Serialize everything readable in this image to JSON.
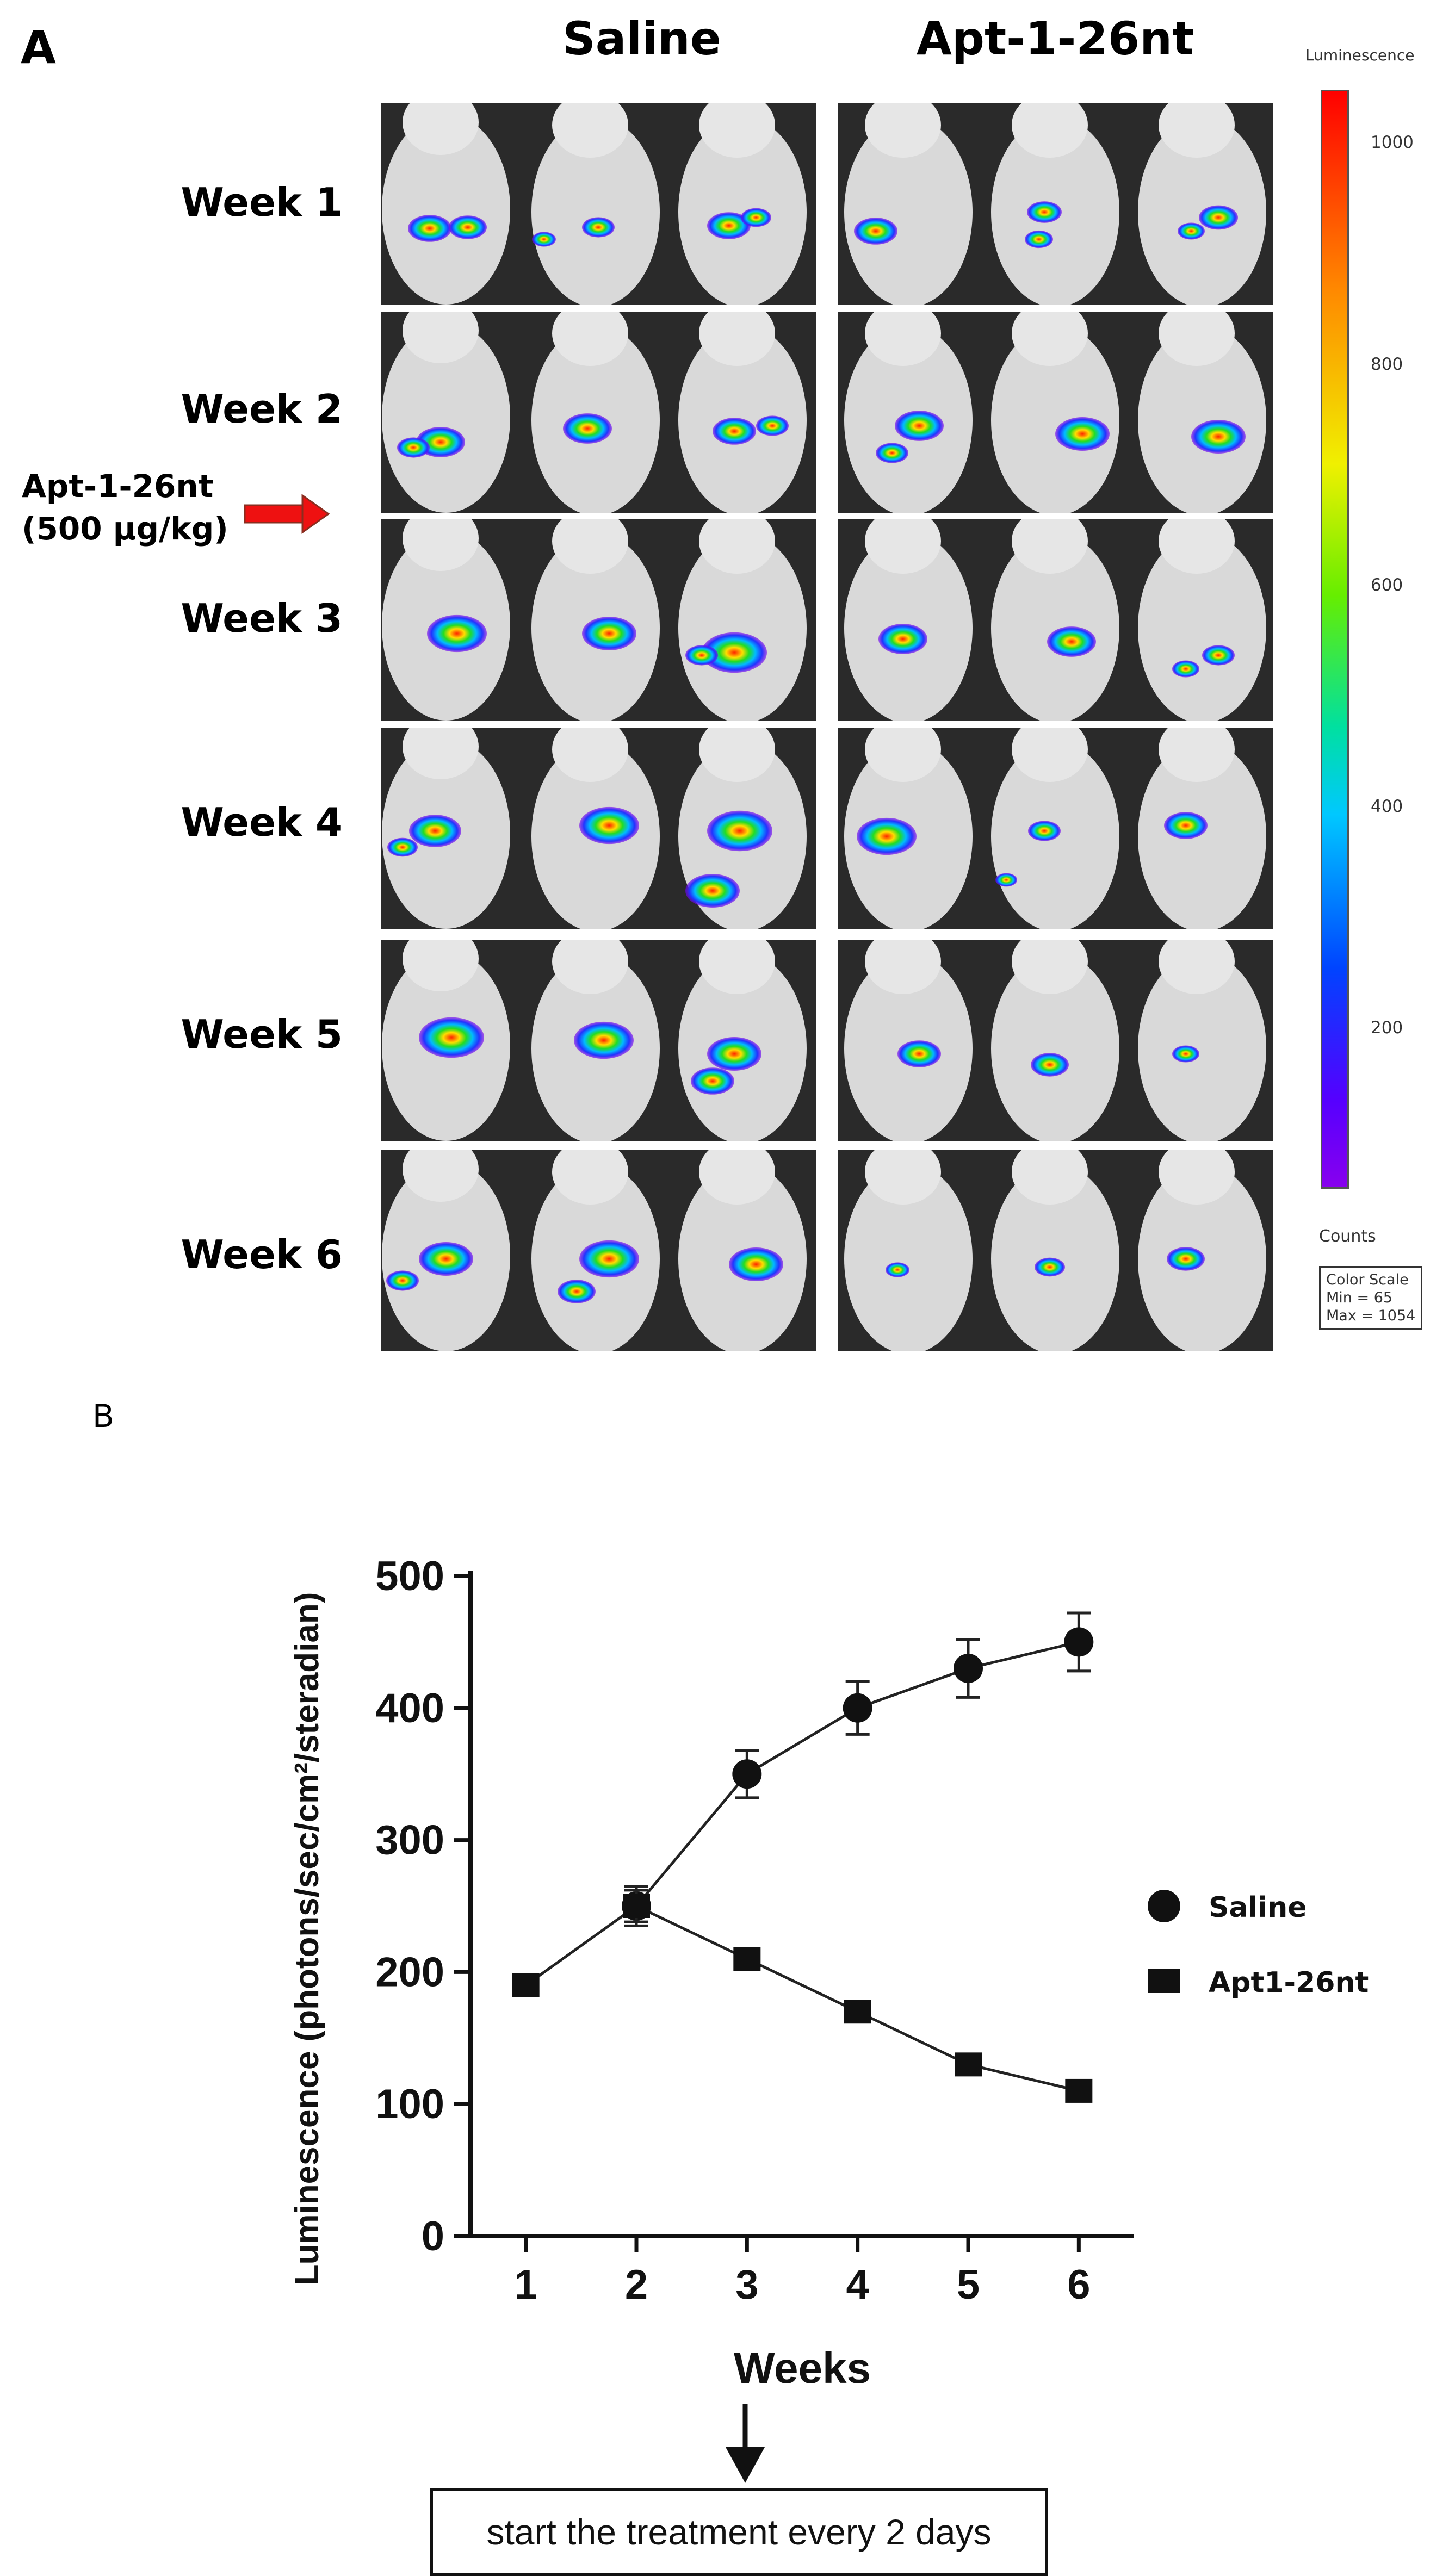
{
  "figure": {
    "panel_a_letter": "A",
    "panel_b_letter": "B",
    "col_saline": "Saline",
    "col_apt": "Apt-1-26nt",
    "weeks": [
      "Week 1",
      "Week 2",
      "Week 3",
      "Week 4",
      "Week 5",
      "Week 6"
    ],
    "treatment_label_line1": "Apt-1-26nt",
    "treatment_label_line2": "(500 μg/kg)",
    "arrow_color": "#ee1111",
    "colorbar": {
      "title": "Luminescence",
      "ticks": [
        "1000",
        "800",
        "600",
        "400",
        "200"
      ],
      "tick_values": [
        1000,
        800,
        600,
        400,
        200
      ],
      "min_value": 65,
      "max_value": 1054,
      "counts_label": "Counts",
      "scale_lines": [
        "Color Scale",
        "Min = 65",
        "Max = 1054"
      ]
    },
    "caption": "start the treatment every 2 days"
  },
  "chart_data": {
    "type": "line",
    "title": "",
    "xlabel": "Weeks",
    "ylabel": "Luminescence (photons/sec/cm²/steradian)",
    "x": [
      1,
      2,
      3,
      4,
      5,
      6
    ],
    "xlim": [
      0.5,
      6.5
    ],
    "ylim": [
      0,
      500
    ],
    "yticks": [
      0,
      100,
      200,
      300,
      400,
      500
    ],
    "series": [
      {
        "name": "Saline",
        "marker": "circle",
        "x": [
          2,
          3,
          4,
          5,
          6
        ],
        "values": [
          250,
          350,
          400,
          430,
          450
        ],
        "errors": [
          15,
          18,
          20,
          22,
          22
        ]
      },
      {
        "name": "Apt1-26nt",
        "marker": "square",
        "x": [
          1,
          2,
          3,
          4,
          5,
          6
        ],
        "values": [
          190,
          250,
          210,
          170,
          130,
          110
        ],
        "errors": [
          0,
          12,
          0,
          0,
          0,
          0
        ]
      }
    ]
  }
}
